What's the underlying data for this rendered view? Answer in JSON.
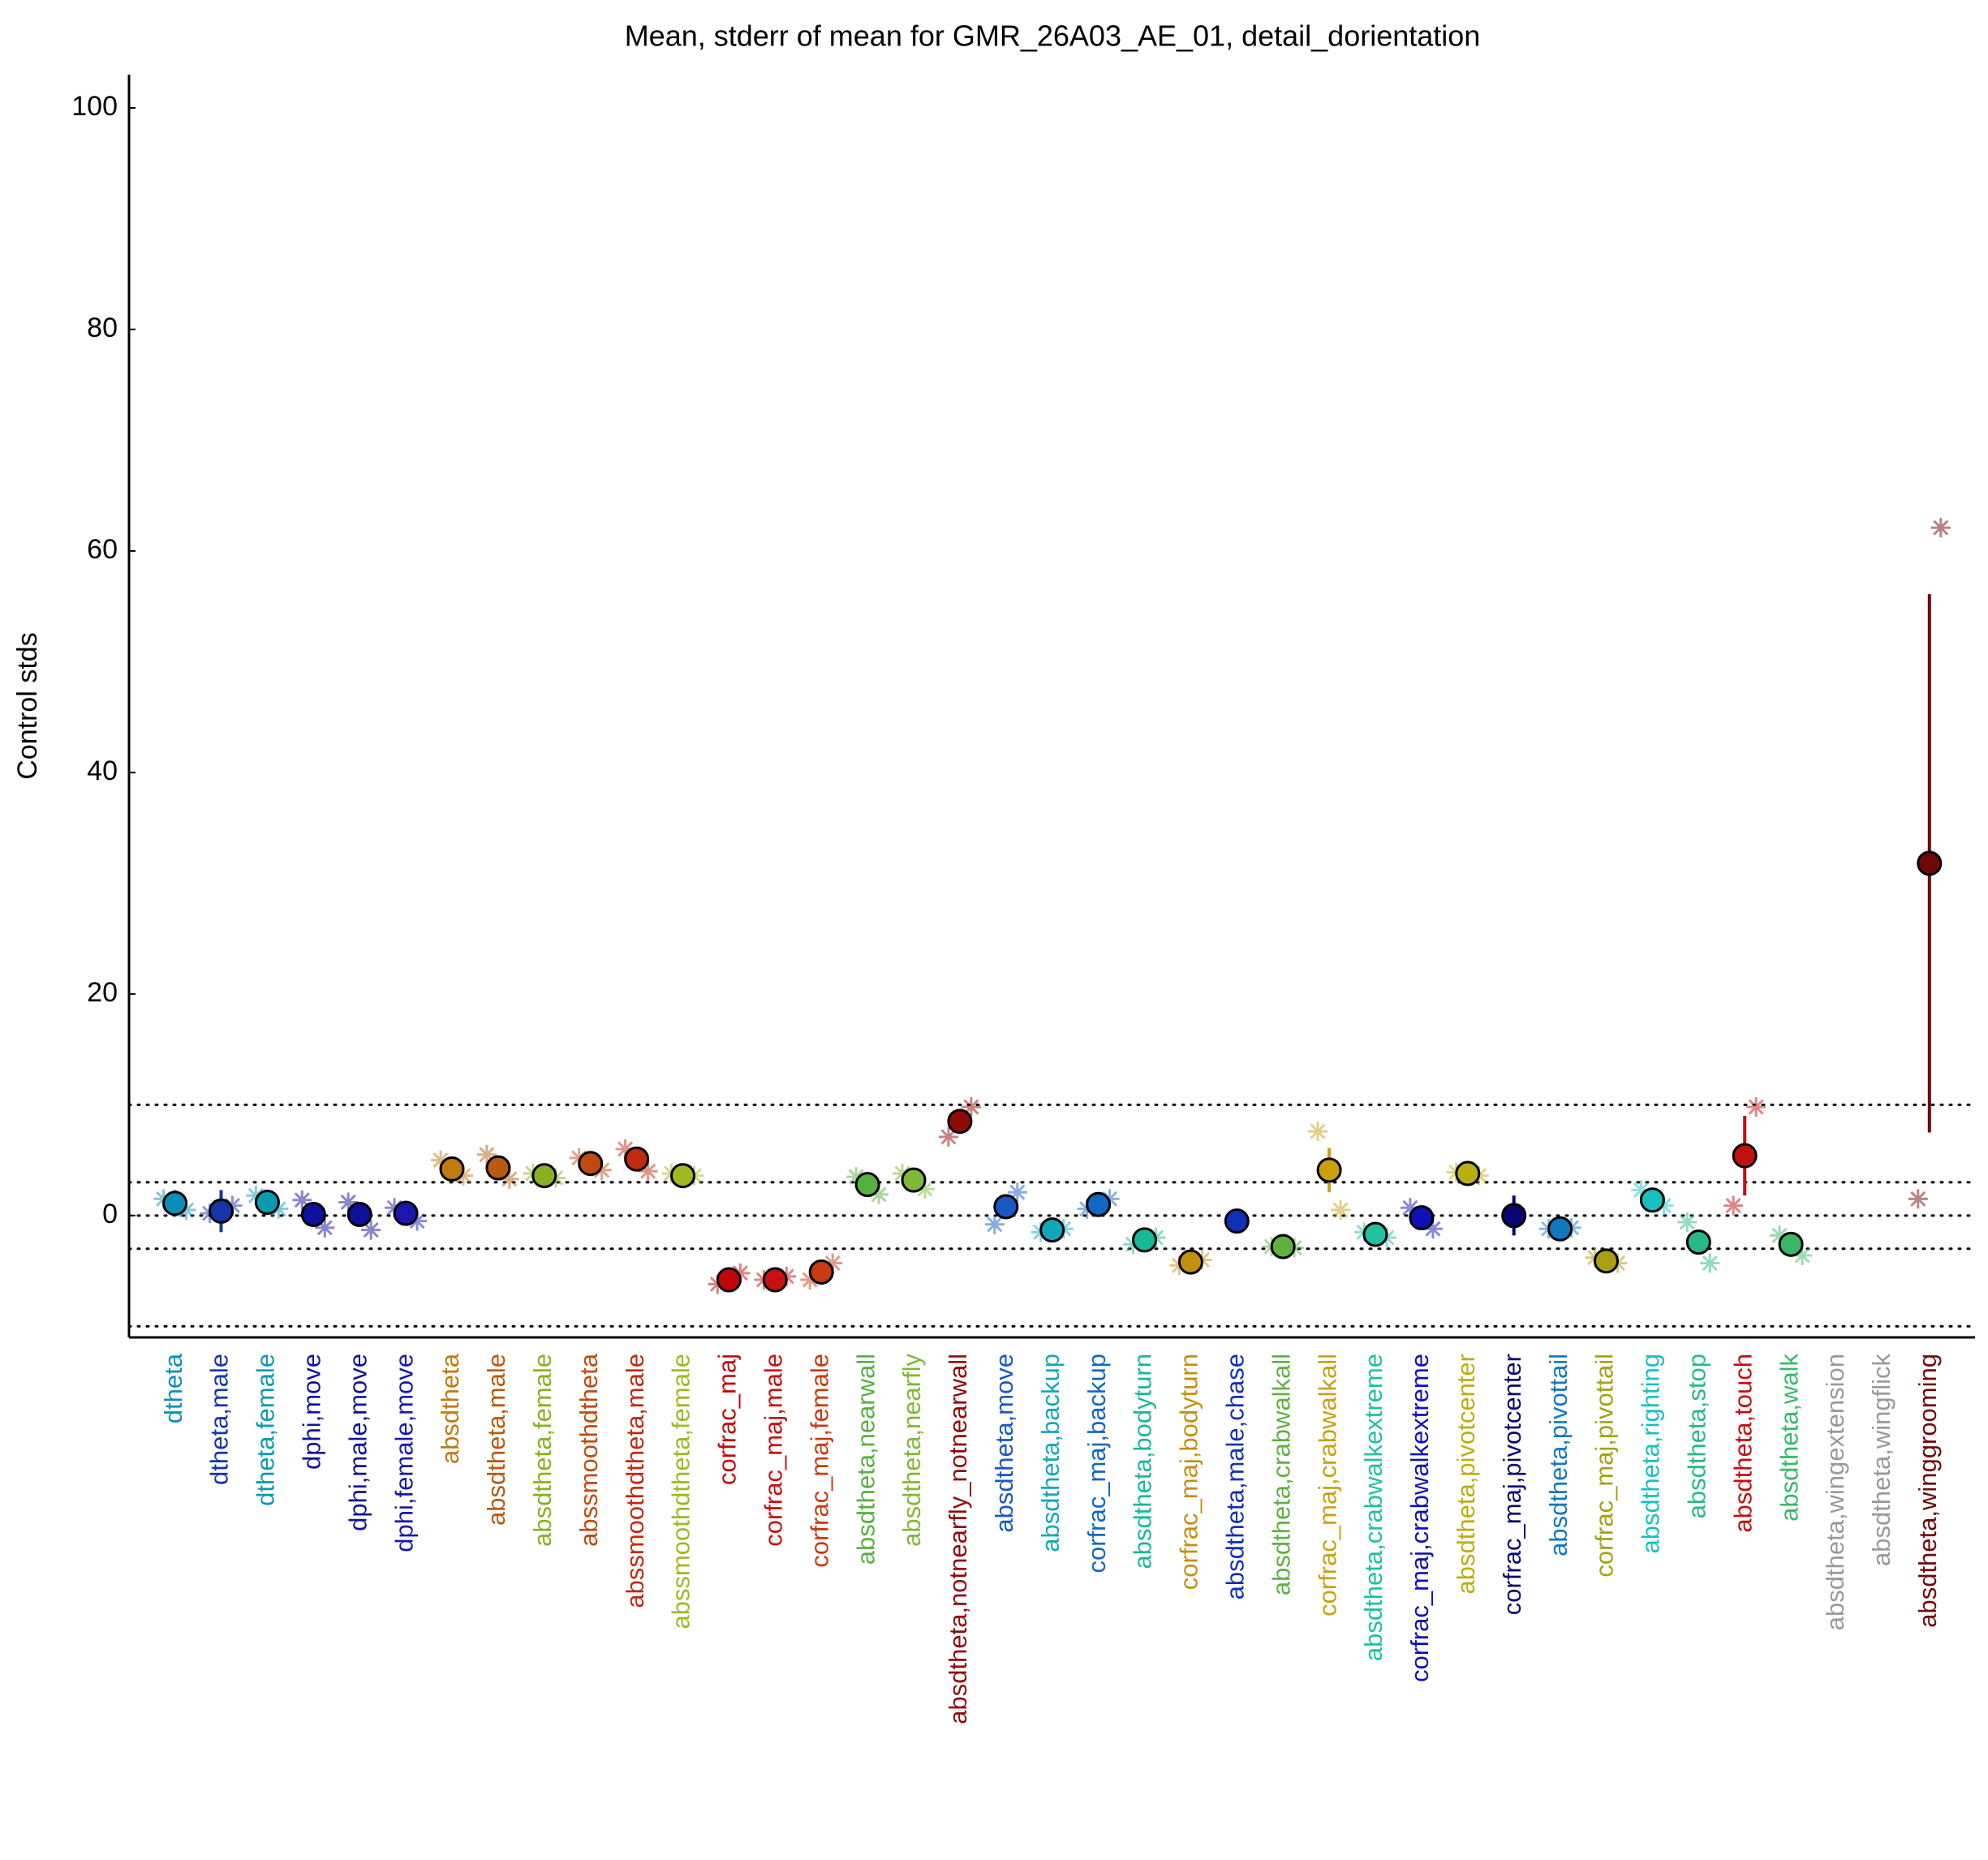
{
  "chart_data": {
    "type": "errorbar",
    "title": "Mean, stderr of mean for GMR_26A03_AE_01, detail_dorientation",
    "ylabel": "Control stds",
    "ylim": [
      -11,
      103
    ],
    "yticks": [
      0,
      20,
      40,
      60,
      80,
      100
    ],
    "reference_lines": [
      -10,
      -3,
      0,
      3,
      10
    ],
    "grid": false,
    "categories": [
      "dtheta",
      "dtheta,male",
      "dtheta,female",
      "dphi,move",
      "dphi,male,move",
      "dphi,female,move",
      "absdtheta",
      "absdtheta,male",
      "absdtheta,female",
      "abssmoothdtheta",
      "abssmoothdtheta,male",
      "abssmoothdtheta,female",
      "corfrac_maj",
      "corfrac_maj,male",
      "corfrac_maj,female",
      "absdtheta,nearwall",
      "absdtheta,nearfly",
      "absdtheta,notnearfly_notnearwall",
      "absdtheta,move",
      "absdtheta,backup",
      "corfrac_maj,backup",
      "absdtheta,bodyturn",
      "corfrac_maj,bodyturn",
      "absdtheta,male,chase",
      "absdtheta,crabwalkall",
      "corfrac_maj,crabwalkall",
      "absdtheta,crabwalkextreme",
      "corfrac_maj,crabwalkextreme",
      "absdtheta,pivotcenter",
      "corfrac_maj,pivotcenter",
      "absdtheta,pivottail",
      "corfrac_maj,pivottail",
      "absdtheta,righting",
      "absdtheta,stop",
      "absdtheta,touch",
      "absdtheta,walk",
      "absdtheta,wingextension",
      "absdtheta,wingflick",
      "absdtheta,winggrooming"
    ],
    "colors": [
      "#0a8fb8",
      "#1535a8",
      "#0a9ab0",
      "#1010a0",
      "#101098",
      "#1818b0",
      "#c07a10",
      "#b85a10",
      "#8ab020",
      "#c04a10",
      "#c02a10",
      "#a0b820",
      "#c00808",
      "#c81010",
      "#c83a10",
      "#58b040",
      "#80b838",
      "#900a0a",
      "#1858c0",
      "#10a8b8",
      "#1068c0",
      "#18b898",
      "#c09010",
      "#1030b8",
      "#60b040",
      "#c8a010",
      "#20c0a0",
      "#1010b8",
      "#b8b010",
      "#080870",
      "#1078c0",
      "#a8a010",
      "#18c0c0",
      "#28b888",
      "#c01010",
      "#38b868",
      "#999999",
      "#999999",
      "#700808"
    ],
    "values": [
      1.1,
      0.4,
      1.2,
      0.1,
      0.1,
      0.2,
      4.2,
      4.3,
      3.6,
      4.7,
      5.1,
      3.6,
      -5.8,
      -5.8,
      -5.1,
      2.8,
      3.2,
      8.5,
      0.8,
      -1.3,
      1.0,
      -2.2,
      -4.2,
      -0.5,
      -2.8,
      4.1,
      -1.7,
      -0.2,
      3.8,
      0.0,
      -1.2,
      -4.1,
      1.4,
      -2.4,
      5.4,
      -2.6,
      null,
      null,
      31.8
    ],
    "errors": [
      1.2,
      1.9,
      0.6,
      0.8,
      1.0,
      0.6,
      0.3,
      0.4,
      0.3,
      0.3,
      0.4,
      0.3,
      0.4,
      0.5,
      0.4,
      0.3,
      0.3,
      0.9,
      0.3,
      0.3,
      0.3,
      0.3,
      0.4,
      0.3,
      0.3,
      2.0,
      0.3,
      0.3,
      1.0,
      1.8,
      0.3,
      0.3,
      0.4,
      0.3,
      3.6,
      0.3,
      null,
      null,
      24.3
    ],
    "markers_left": [
      1.5,
      0.2,
      1.8,
      1.4,
      1.2,
      0.7,
      5.0,
      5.5,
      3.8,
      5.2,
      6.0,
      3.8,
      -6.2,
      -5.8,
      -5.8,
      3.5,
      3.8,
      7.1,
      -0.8,
      -1.5,
      0.6,
      -2.6,
      -4.5,
      null,
      -2.8,
      7.6,
      -1.5,
      0.7,
      3.9,
      null,
      -1.2,
      -3.8,
      2.3,
      -0.6,
      0.9,
      -1.8,
      null,
      null,
      1.5
    ],
    "markers_right": [
      0.5,
      0.9,
      0.6,
      -1.1,
      -1.3,
      -0.5,
      3.6,
      3.3,
      3.4,
      4.1,
      4.0,
      3.6,
      -5.2,
      -5.5,
      -4.3,
      1.9,
      2.4,
      9.8,
      2.1,
      -1.2,
      1.5,
      -2.0,
      -4.0,
      null,
      -2.9,
      0.5,
      -2.0,
      -1.2,
      3.6,
      null,
      -1.1,
      -4.3,
      0.9,
      -4.3,
      9.8,
      -3.6,
      null,
      null,
      62.1
    ]
  }
}
